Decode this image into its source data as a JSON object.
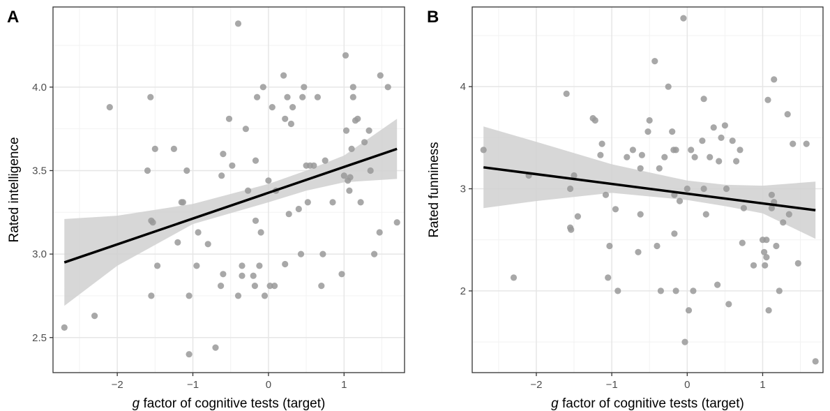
{
  "chart_data": [
    {
      "type": "scatter",
      "panel_label": "A",
      "title": "",
      "xlabel_italic": "g",
      "xlabel_rest": " factor of cognitive tests (target)",
      "ylabel": "Rated intelligence",
      "xlim": [
        -2.85,
        1.8
      ],
      "ylim": [
        2.29,
        4.48
      ],
      "x_ticks": [
        -2,
        -1,
        0,
        1
      ],
      "x_tick_labels": [
        "−2",
        "−1",
        "0",
        "1"
      ],
      "y_ticks": [
        2.5,
        3.0,
        3.5,
        4.0
      ],
      "y_tick_labels": [
        "2.5",
        "3.0",
        "3.5",
        "4.0"
      ],
      "grid": true,
      "colors": {
        "points": "#999999",
        "line": "#000000",
        "ribbon": "#d0d0d0"
      },
      "regression": {
        "x": [
          -2.7,
          1.7
        ],
        "y": [
          2.95,
          3.63
        ]
      },
      "ci_band": {
        "x": [
          -2.7,
          -2.0,
          -1.0,
          0.0,
          0.5,
          1.0,
          1.7
        ],
        "lower": [
          2.69,
          2.93,
          3.18,
          3.31,
          3.38,
          3.43,
          3.45
        ],
        "upper": [
          3.21,
          3.23,
          3.3,
          3.42,
          3.5,
          3.59,
          3.81
        ]
      },
      "points": [
        {
          "x": -2.7,
          "y": 2.56
        },
        {
          "x": -2.3,
          "y": 2.63
        },
        {
          "x": -2.1,
          "y": 3.88
        },
        {
          "x": -1.6,
          "y": 3.5
        },
        {
          "x": -1.56,
          "y": 3.94
        },
        {
          "x": -1.55,
          "y": 3.2
        },
        {
          "x": -1.53,
          "y": 3.19
        },
        {
          "x": -1.55,
          "y": 2.75
        },
        {
          "x": -1.5,
          "y": 3.63
        },
        {
          "x": -1.47,
          "y": 2.93
        },
        {
          "x": -1.25,
          "y": 3.63
        },
        {
          "x": -1.2,
          "y": 3.07
        },
        {
          "x": -1.15,
          "y": 3.31
        },
        {
          "x": -1.13,
          "y": 3.31
        },
        {
          "x": -1.08,
          "y": 3.5
        },
        {
          "x": -1.05,
          "y": 2.75
        },
        {
          "x": -1.05,
          "y": 2.4
        },
        {
          "x": -0.95,
          "y": 2.93
        },
        {
          "x": -0.93,
          "y": 3.13
        },
        {
          "x": -0.8,
          "y": 3.06
        },
        {
          "x": -0.7,
          "y": 2.44
        },
        {
          "x": -0.63,
          "y": 2.81
        },
        {
          "x": -0.62,
          "y": 3.47
        },
        {
          "x": -0.6,
          "y": 3.6
        },
        {
          "x": -0.6,
          "y": 2.88
        },
        {
          "x": -0.52,
          "y": 3.81
        },
        {
          "x": -0.48,
          "y": 3.53
        },
        {
          "x": -0.4,
          "y": 4.38
        },
        {
          "x": -0.4,
          "y": 2.75
        },
        {
          "x": -0.35,
          "y": 2.87
        },
        {
          "x": -0.35,
          "y": 2.93
        },
        {
          "x": -0.3,
          "y": 3.75
        },
        {
          "x": -0.27,
          "y": 3.38
        },
        {
          "x": -0.2,
          "y": 2.87
        },
        {
          "x": -0.18,
          "y": 2.81
        },
        {
          "x": -0.17,
          "y": 3.56
        },
        {
          "x": -0.17,
          "y": 3.2
        },
        {
          "x": -0.15,
          "y": 3.94
        },
        {
          "x": -0.12,
          "y": 2.93
        },
        {
          "x": -0.1,
          "y": 3.13
        },
        {
          "x": -0.07,
          "y": 4.0
        },
        {
          "x": -0.05,
          "y": 2.75
        },
        {
          "x": 0.0,
          "y": 3.44
        },
        {
          "x": 0.02,
          "y": 2.81
        },
        {
          "x": 0.05,
          "y": 3.88
        },
        {
          "x": 0.08,
          "y": 2.81
        },
        {
          "x": 0.1,
          "y": 3.38
        },
        {
          "x": 0.2,
          "y": 4.07
        },
        {
          "x": 0.22,
          "y": 3.81
        },
        {
          "x": 0.22,
          "y": 2.94
        },
        {
          "x": 0.25,
          "y": 3.94
        },
        {
          "x": 0.27,
          "y": 3.24
        },
        {
          "x": 0.3,
          "y": 3.78
        },
        {
          "x": 0.32,
          "y": 3.88
        },
        {
          "x": 0.4,
          "y": 3.27
        },
        {
          "x": 0.43,
          "y": 3.0
        },
        {
          "x": 0.45,
          "y": 3.94
        },
        {
          "x": 0.47,
          "y": 4.0
        },
        {
          "x": 0.5,
          "y": 3.53
        },
        {
          "x": 0.52,
          "y": 3.31
        },
        {
          "x": 0.55,
          "y": 3.53
        },
        {
          "x": 0.6,
          "y": 3.53
        },
        {
          "x": 0.65,
          "y": 3.94
        },
        {
          "x": 0.7,
          "y": 2.81
        },
        {
          "x": 0.72,
          "y": 3.0
        },
        {
          "x": 0.75,
          "y": 3.56
        },
        {
          "x": 0.85,
          "y": 3.31
        },
        {
          "x": 0.97,
          "y": 2.88
        },
        {
          "x": 1.0,
          "y": 3.47
        },
        {
          "x": 1.02,
          "y": 4.19
        },
        {
          "x": 1.03,
          "y": 3.74
        },
        {
          "x": 1.05,
          "y": 3.44
        },
        {
          "x": 1.07,
          "y": 3.38
        },
        {
          "x": 1.08,
          "y": 3.46
        },
        {
          "x": 1.1,
          "y": 3.63
        },
        {
          "x": 1.12,
          "y": 3.94
        },
        {
          "x": 1.12,
          "y": 4.0
        },
        {
          "x": 1.15,
          "y": 3.8
        },
        {
          "x": 1.18,
          "y": 3.81
        },
        {
          "x": 1.22,
          "y": 3.31
        },
        {
          "x": 1.27,
          "y": 3.67
        },
        {
          "x": 1.33,
          "y": 3.74
        },
        {
          "x": 1.35,
          "y": 3.5
        },
        {
          "x": 1.4,
          "y": 3.0
        },
        {
          "x": 1.47,
          "y": 3.13
        },
        {
          "x": 1.48,
          "y": 4.07
        },
        {
          "x": 1.58,
          "y": 4.0
        },
        {
          "x": 1.7,
          "y": 3.19
        }
      ]
    },
    {
      "type": "scatter",
      "panel_label": "B",
      "title": "",
      "xlabel_italic": "g",
      "xlabel_rest": " factor of cognitive tests (target)",
      "ylabel": "Rated funniness",
      "xlim": [
        -2.85,
        1.8
      ],
      "ylim": [
        1.2,
        4.78
      ],
      "x_ticks": [
        -2,
        -1,
        0,
        1
      ],
      "x_tick_labels": [
        "−2",
        "−1",
        "0",
        "1"
      ],
      "y_ticks": [
        2,
        3,
        4
      ],
      "y_tick_labels": [
        "2",
        "3",
        "4"
      ],
      "grid": true,
      "colors": {
        "points": "#999999",
        "line": "#000000",
        "ribbon": "#d0d0d0"
      },
      "regression": {
        "x": [
          -2.7,
          1.7
        ],
        "y": [
          3.21,
          2.79
        ]
      },
      "ci_band": {
        "x": [
          -2.7,
          -2.0,
          -1.0,
          0.0,
          0.5,
          1.0,
          1.7
        ],
        "lower": [
          2.81,
          2.88,
          2.96,
          2.89,
          2.83,
          2.76,
          2.51
        ],
        "upper": [
          3.61,
          3.46,
          3.24,
          3.08,
          3.04,
          3.03,
          3.07
        ]
      },
      "points": [
        {
          "x": -2.7,
          "y": 3.38
        },
        {
          "x": -2.3,
          "y": 2.13
        },
        {
          "x": -2.1,
          "y": 3.13
        },
        {
          "x": -1.6,
          "y": 3.93
        },
        {
          "x": -1.55,
          "y": 3.0
        },
        {
          "x": -1.55,
          "y": 2.62
        },
        {
          "x": -1.54,
          "y": 2.6
        },
        {
          "x": -1.5,
          "y": 3.13
        },
        {
          "x": -1.45,
          "y": 2.73
        },
        {
          "x": -1.25,
          "y": 3.69
        },
        {
          "x": -1.22,
          "y": 3.67
        },
        {
          "x": -1.15,
          "y": 3.33
        },
        {
          "x": -1.13,
          "y": 3.44
        },
        {
          "x": -1.08,
          "y": 2.94
        },
        {
          "x": -1.05,
          "y": 2.13
        },
        {
          "x": -1.03,
          "y": 2.44
        },
        {
          "x": -0.95,
          "y": 2.8
        },
        {
          "x": -0.92,
          "y": 2.0
        },
        {
          "x": -0.8,
          "y": 3.31
        },
        {
          "x": -0.72,
          "y": 3.38
        },
        {
          "x": -0.65,
          "y": 2.38
        },
        {
          "x": -0.62,
          "y": 2.75
        },
        {
          "x": -0.62,
          "y": 3.2
        },
        {
          "x": -0.6,
          "y": 3.33
        },
        {
          "x": -0.52,
          "y": 3.56
        },
        {
          "x": -0.5,
          "y": 3.67
        },
        {
          "x": -0.43,
          "y": 4.25
        },
        {
          "x": -0.4,
          "y": 2.44
        },
        {
          "x": -0.37,
          "y": 3.2
        },
        {
          "x": -0.35,
          "y": 2.0
        },
        {
          "x": -0.3,
          "y": 3.31
        },
        {
          "x": -0.25,
          "y": 4.0
        },
        {
          "x": -0.2,
          "y": 3.56
        },
        {
          "x": -0.18,
          "y": 3.38
        },
        {
          "x": -0.17,
          "y": 2.94
        },
        {
          "x": -0.17,
          "y": 2.56
        },
        {
          "x": -0.15,
          "y": 2.0
        },
        {
          "x": -0.15,
          "y": 3.38
        },
        {
          "x": -0.1,
          "y": 2.88
        },
        {
          "x": -0.05,
          "y": 4.67
        },
        {
          "x": -0.03,
          "y": 1.5
        },
        {
          "x": 0.0,
          "y": 3.0
        },
        {
          "x": 0.02,
          "y": 1.81
        },
        {
          "x": 0.05,
          "y": 3.38
        },
        {
          "x": 0.08,
          "y": 2.0
        },
        {
          "x": 0.1,
          "y": 3.31
        },
        {
          "x": 0.2,
          "y": 3.47
        },
        {
          "x": 0.22,
          "y": 3.88
        },
        {
          "x": 0.22,
          "y": 3.0
        },
        {
          "x": 0.25,
          "y": 2.75
        },
        {
          "x": 0.3,
          "y": 3.31
        },
        {
          "x": 0.35,
          "y": 3.6
        },
        {
          "x": 0.4,
          "y": 2.06
        },
        {
          "x": 0.42,
          "y": 3.27
        },
        {
          "x": 0.45,
          "y": 3.5
        },
        {
          "x": 0.5,
          "y": 3.62
        },
        {
          "x": 0.52,
          "y": 3.0
        },
        {
          "x": 0.55,
          "y": 1.87
        },
        {
          "x": 0.6,
          "y": 3.47
        },
        {
          "x": 0.65,
          "y": 3.27
        },
        {
          "x": 0.7,
          "y": 3.38
        },
        {
          "x": 0.73,
          "y": 2.47
        },
        {
          "x": 0.75,
          "y": 2.81
        },
        {
          "x": 0.88,
          "y": 2.25
        },
        {
          "x": 1.0,
          "y": 2.5
        },
        {
          "x": 1.02,
          "y": 2.38
        },
        {
          "x": 1.03,
          "y": 2.25
        },
        {
          "x": 1.05,
          "y": 2.33
        },
        {
          "x": 1.05,
          "y": 2.5
        },
        {
          "x": 1.07,
          "y": 3.87
        },
        {
          "x": 1.08,
          "y": 1.81
        },
        {
          "x": 1.12,
          "y": 2.94
        },
        {
          "x": 1.12,
          "y": 2.81
        },
        {
          "x": 1.15,
          "y": 4.07
        },
        {
          "x": 1.15,
          "y": 2.87
        },
        {
          "x": 1.18,
          "y": 2.44
        },
        {
          "x": 1.22,
          "y": 2.0
        },
        {
          "x": 1.27,
          "y": 2.67
        },
        {
          "x": 1.33,
          "y": 3.73
        },
        {
          "x": 1.35,
          "y": 2.75
        },
        {
          "x": 1.4,
          "y": 3.44
        },
        {
          "x": 1.47,
          "y": 2.27
        },
        {
          "x": 1.58,
          "y": 3.44
        },
        {
          "x": 1.7,
          "y": 1.31
        }
      ]
    }
  ]
}
